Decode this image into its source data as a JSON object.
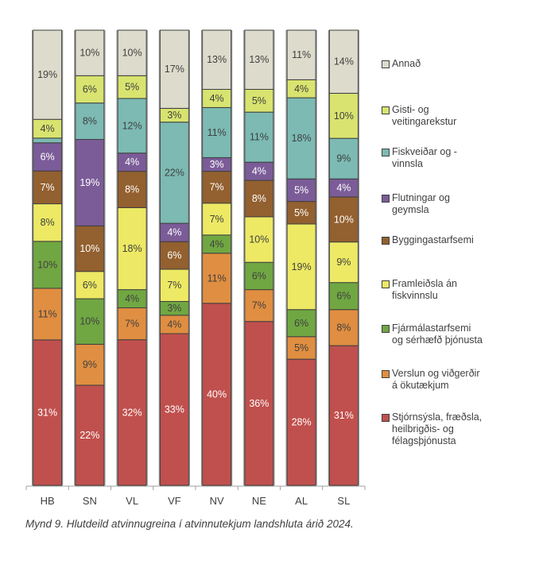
{
  "chart_data": {
    "type": "bar",
    "stacked": true,
    "normalized": true,
    "title": "",
    "xlabel": "",
    "ylabel": "",
    "ylim": [
      0,
      100
    ],
    "categories": [
      "HB",
      "SN",
      "VL",
      "VF",
      "NV",
      "NE",
      "AL",
      "SL"
    ],
    "series": [
      {
        "name": "Stjórnsýsla, fræðsla, heilbrigðis- og félagsþjónusta",
        "color": "#c0504d",
        "label_color": "#ffffff",
        "values": [
          31,
          22,
          32,
          33,
          40,
          36,
          28,
          31
        ],
        "labels": [
          "31%",
          "22%",
          "32%",
          "33%",
          "40%",
          "36%",
          "28%",
          "31%"
        ]
      },
      {
        "name": "Verslun og viðgerðir á ökutækjum",
        "color": "#e08e41",
        "label_color": "#404040",
        "values": [
          11,
          9,
          7,
          4,
          11,
          7,
          5,
          8
        ],
        "labels": [
          "11%",
          "9%",
          "7%",
          "4%",
          "11%",
          "7%",
          "5%",
          "8%"
        ]
      },
      {
        "name": "Fjármálastarfsemi og sérhæfð þjónusta",
        "color": "#70a742",
        "label_color": "#404040",
        "values": [
          10,
          10,
          4,
          3,
          4,
          6,
          6,
          6
        ],
        "labels": [
          "10%",
          "10%",
          "4%",
          "3%",
          "4%",
          "6%",
          "6%",
          "6%"
        ]
      },
      {
        "name": "Framleiðsla án fiskvinnslu",
        "color": "#ede964",
        "label_color": "#404040",
        "values": [
          8,
          6,
          18,
          7,
          7,
          10,
          19,
          9
        ],
        "labels": [
          "8%",
          "6%",
          "18%",
          "7%",
          "7%",
          "10%",
          "19%",
          "9%"
        ]
      },
      {
        "name": "Byggingastarfsemi",
        "color": "#93602f",
        "label_color": "#ffffff",
        "values": [
          7,
          10,
          8,
          6,
          7,
          8,
          5,
          10
        ],
        "labels": [
          "7%",
          "10%",
          "8%",
          "6%",
          "7%",
          "8%",
          "5%",
          "10%"
        ]
      },
      {
        "name": "Flutningar og geymsla",
        "color": "#7b5c98",
        "label_color": "#ffffff",
        "values": [
          6,
          19,
          4,
          4,
          3,
          4,
          5,
          4
        ],
        "labels": [
          "6%",
          "19%",
          "4%",
          "4%",
          "3%",
          "4%",
          "5%",
          "4%"
        ]
      },
      {
        "name": "Fiskveiðar og -vinnsla",
        "color": "#7cbab3",
        "label_color": "#404040",
        "values": [
          1,
          8,
          12,
          22,
          11,
          11,
          18,
          9
        ],
        "labels": [
          "",
          "8%",
          "12%",
          "22%",
          "11%",
          "11%",
          "18%",
          "9%"
        ]
      },
      {
        "name": "Gisti- og veitingarekstur",
        "color": "#d8e46f",
        "label_color": "#404040",
        "values": [
          4,
          6,
          5,
          3,
          4,
          5,
          4,
          10
        ],
        "labels": [
          "4%",
          "6%",
          "5%",
          "3%",
          "4%",
          "5%",
          "4%",
          "10%"
        ]
      },
      {
        "name": "Annað",
        "color": "#dddbcc",
        "label_color": "#404040",
        "values": [
          19,
          10,
          10,
          17,
          13,
          13,
          11,
          14
        ],
        "labels": [
          "19%",
          "10%",
          "10%",
          "17%",
          "13%",
          "13%",
          "11%",
          "14%"
        ]
      }
    ],
    "legend": {
      "placement": "right",
      "order_top_to_bottom": [
        {
          "label": "Annað",
          "color": "#dddbcc"
        },
        {
          "label": "Gisti- og\nveitingarekstur",
          "color": "#d8e46f"
        },
        {
          "label": "Fiskveiðar og -\nvinnsla",
          "color": "#7cbab3"
        },
        {
          "label": "Flutningar og\ngeymsla",
          "color": "#7b5c98"
        },
        {
          "label": "Byggingastarfsemi",
          "color": "#93602f"
        },
        {
          "label": "Framleiðsla án\nfiskvinnslu",
          "color": "#ede964"
        },
        {
          "label": "Fjármálastarfsemi\nog sérhæfð þjónusta",
          "color": "#70a742"
        },
        {
          "label": "Verslun og viðgerðir\ná ökutækjum",
          "color": "#e08e41"
        },
        {
          "label": "Stjórnsýsla, fræðsla,\nheilbrigðis- og\nfélagsþjónusta",
          "color": "#c0504d"
        }
      ]
    },
    "grid": false
  },
  "caption": "Mynd 9. Hlutdeild atvinnugreina í atvinnutekjum landshluta árið 2024."
}
